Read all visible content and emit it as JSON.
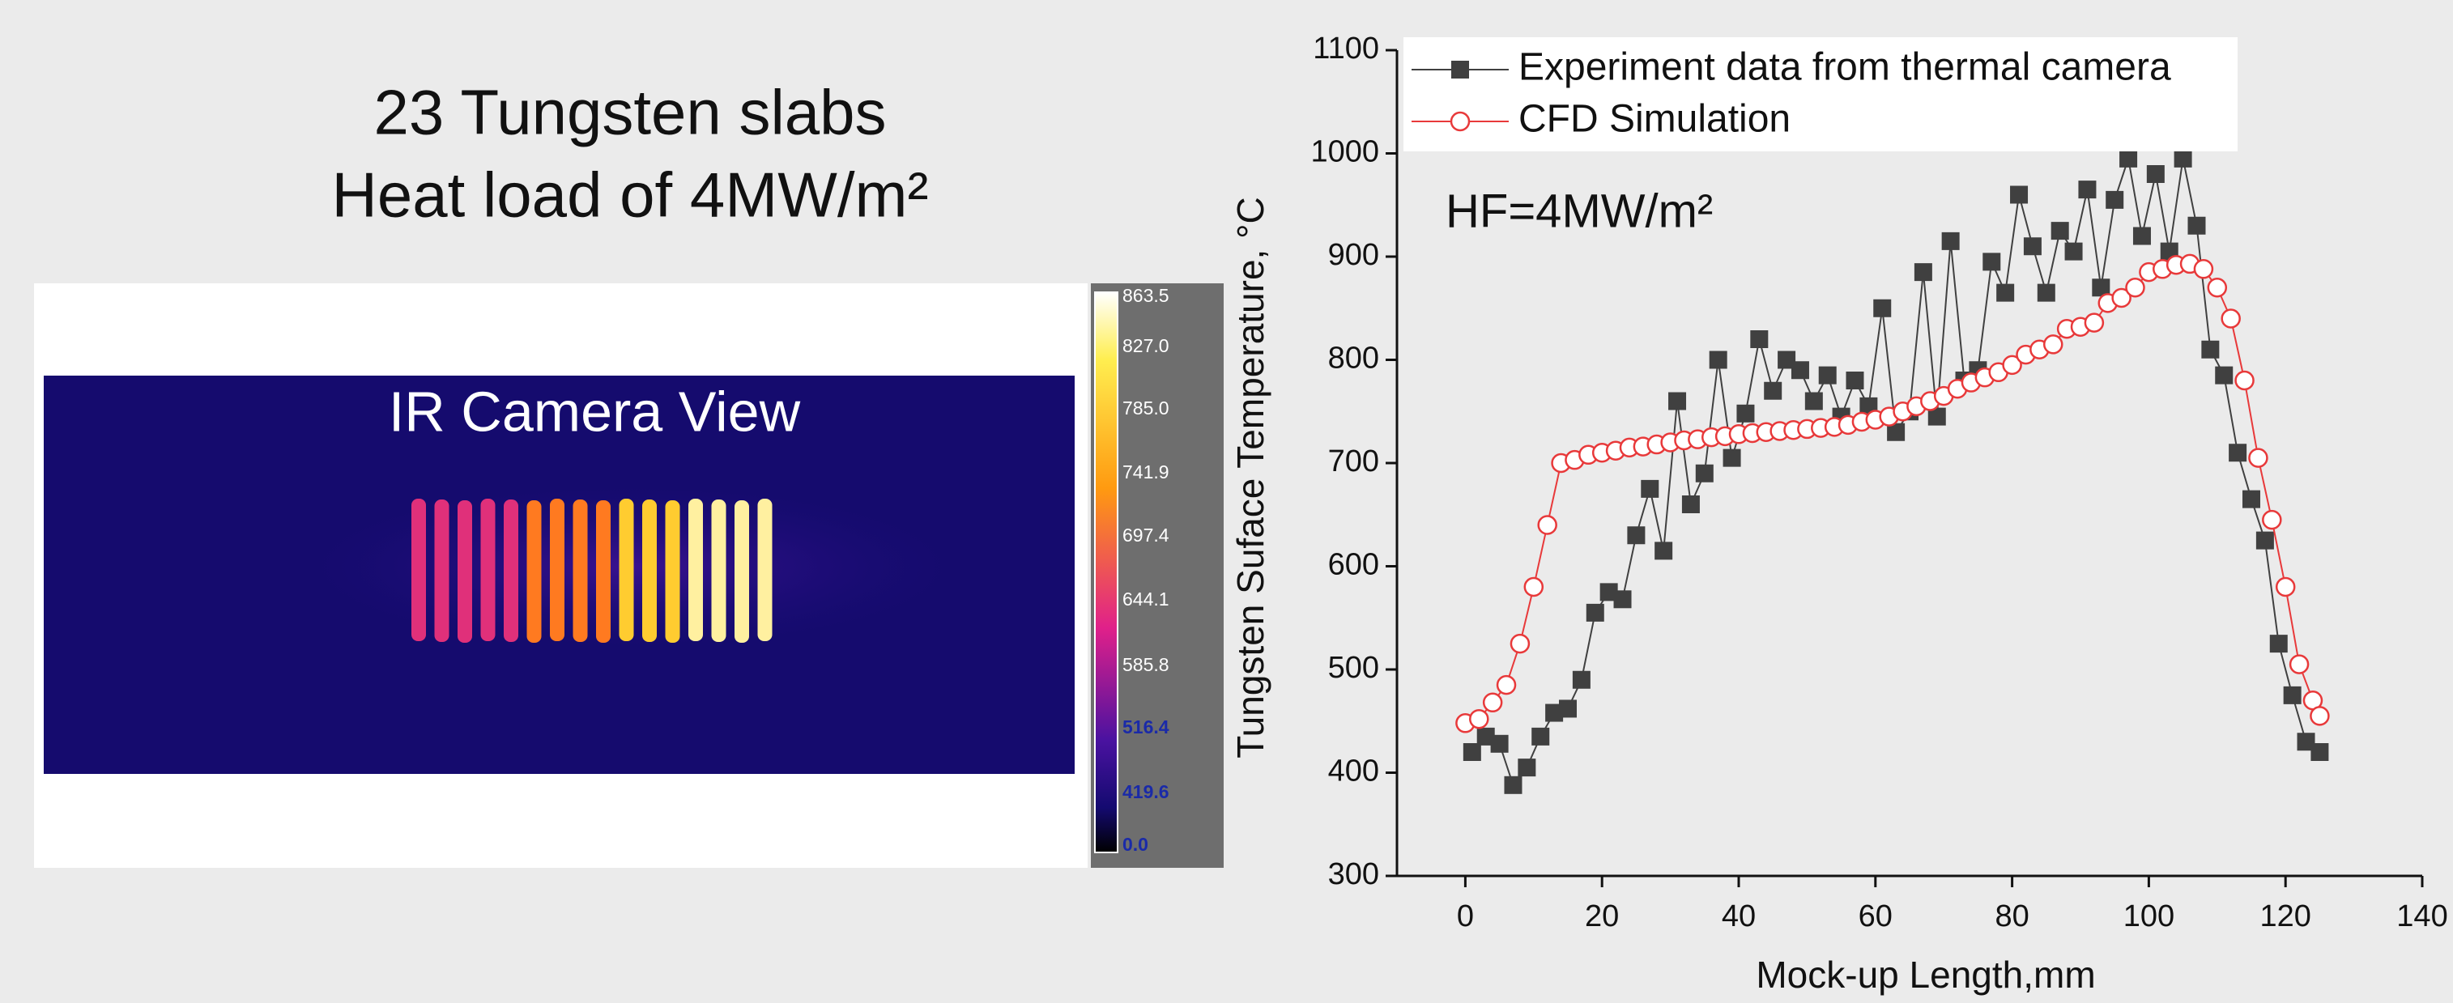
{
  "slide": {
    "title": [
      "23 Tungsten slabs",
      "Heat load of 4MW/m²"
    ]
  },
  "ir_image": {
    "label": "IR Camera View",
    "colorbar_labels": [
      "863.5",
      "827.0",
      "785.0",
      "741.9",
      "697.4",
      "644.1",
      "585.8",
      "516.4",
      "419.6",
      "0.0"
    ]
  },
  "chart_data": {
    "type": "line",
    "x_label": "Mock-up Length,mm",
    "y_label": "Tungsten Suface Temperature, °C",
    "annotations": [
      "HF=4MW/m²"
    ],
    "xlim": [
      -10,
      140
    ],
    "xticks": [
      0,
      20,
      40,
      60,
      80,
      100,
      120,
      140
    ],
    "ylim": [
      300,
      1100
    ],
    "yticks": [
      300,
      400,
      500,
      600,
      700,
      800,
      900,
      1000,
      1100
    ],
    "legend": "upper right",
    "series": [
      {
        "name": "Experiment data from thermal camera",
        "color": "#404040",
        "marker": "square",
        "x": [
          1,
          3,
          5,
          7,
          9,
          11,
          13,
          15,
          17,
          19,
          21,
          23,
          25,
          27,
          29,
          31,
          33,
          35,
          37,
          39,
          41,
          43,
          45,
          47,
          49,
          51,
          53,
          55,
          57,
          59,
          61,
          63,
          65,
          67,
          69,
          71,
          73,
          75,
          77,
          79,
          81,
          83,
          85,
          87,
          89,
          91,
          93,
          95,
          97,
          99,
          101,
          103,
          105,
          107,
          109,
          111,
          113,
          115,
          117,
          119,
          121,
          123,
          125
        ],
        "values": [
          420,
          435,
          428,
          388,
          405,
          435,
          458,
          462,
          490,
          555,
          575,
          568,
          630,
          675,
          615,
          760,
          660,
          690,
          800,
          705,
          748,
          820,
          770,
          800,
          790,
          760,
          785,
          745,
          780,
          755,
          850,
          730,
          750,
          885,
          745,
          915,
          780,
          790,
          895,
          865,
          960,
          910,
          865,
          925,
          905,
          965,
          870,
          955,
          995,
          920,
          980,
          905,
          995,
          930,
          810,
          785,
          710,
          665,
          625,
          525,
          475,
          430,
          420
        ]
      },
      {
        "name": "CFD Simulation",
        "color": "#e8393a",
        "marker": "circle",
        "x": [
          0,
          2,
          4,
          6,
          8,
          10,
          12,
          14,
          16,
          18,
          20,
          22,
          24,
          26,
          28,
          30,
          32,
          34,
          36,
          38,
          40,
          42,
          44,
          46,
          48,
          50,
          52,
          54,
          56,
          58,
          60,
          62,
          64,
          66,
          68,
          70,
          72,
          74,
          76,
          78,
          80,
          82,
          84,
          86,
          88,
          90,
          92,
          94,
          96,
          98,
          100,
          102,
          104,
          106,
          108,
          110,
          112,
          114,
          116,
          118,
          120,
          122,
          124,
          125
        ],
        "values": [
          448,
          452,
          468,
          485,
          525,
          580,
          640,
          700,
          703,
          708,
          710,
          712,
          715,
          716,
          718,
          720,
          722,
          723,
          725,
          726,
          728,
          729,
          730,
          731,
          732,
          733,
          734,
          735,
          737,
          740,
          742,
          745,
          750,
          755,
          760,
          765,
          772,
          778,
          783,
          788,
          795,
          805,
          810,
          815,
          830,
          832,
          836,
          855,
          860,
          870,
          885,
          888,
          892,
          893,
          888,
          870,
          840,
          780,
          705,
          645,
          580,
          505,
          470,
          455
        ]
      }
    ]
  }
}
